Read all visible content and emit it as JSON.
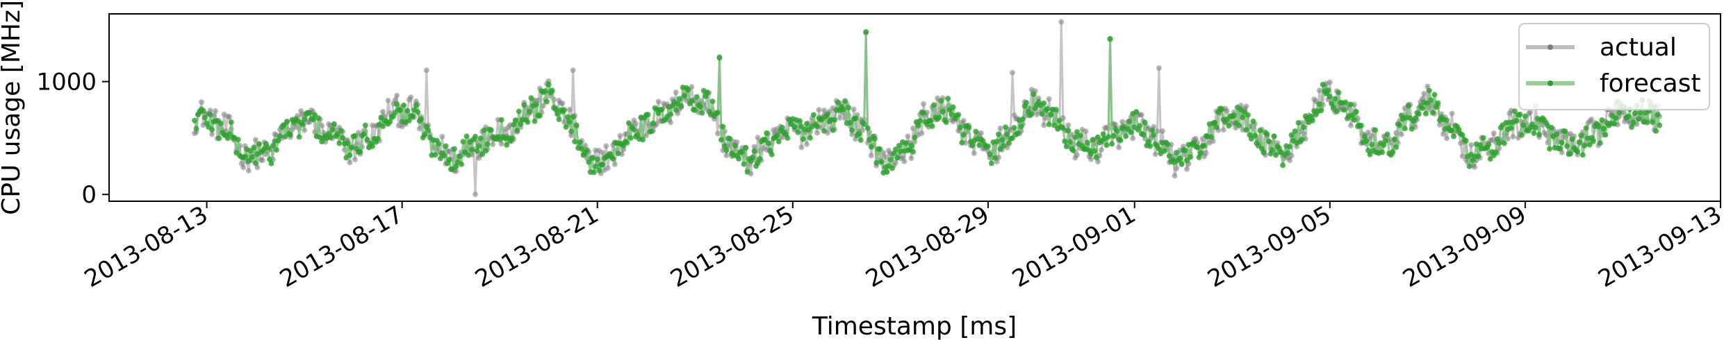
{
  "chart_data": {
    "type": "line",
    "title": "",
    "xlabel": "Timestamp [ms]",
    "ylabel": "CPU usage [MHz]",
    "x_start": "2013-08-12",
    "x_end": "2013-09-13",
    "xlim": [
      "2013-08-11",
      "2013-09-13"
    ],
    "ylim": [
      -60,
      1600
    ],
    "x_ticks": [
      "2013-08-13",
      "2013-08-17",
      "2013-08-21",
      "2013-08-25",
      "2013-08-29",
      "2013-09-01",
      "2013-09-05",
      "2013-09-09",
      "2013-09-13"
    ],
    "y_ticks": [
      "0",
      "1000"
    ],
    "y_tick_values": [
      0,
      1000
    ],
    "legend_position": "top-right",
    "grid": false,
    "series": [
      {
        "name": "actual",
        "color": "#7f7f7f",
        "marker": "circle",
        "points": [
          [
            "2013-08-13",
            680
          ],
          [
            "2013-08-14",
            330
          ],
          [
            "2013-08-15",
            650
          ],
          [
            "2013-08-16",
            420
          ],
          [
            "2013-08-17",
            760
          ],
          [
            "2013-08-18",
            330
          ],
          [
            "2013-08-19",
            560
          ],
          [
            "2013-08-20",
            860
          ],
          [
            "2013-08-21",
            280
          ],
          [
            "2013-08-22",
            640
          ],
          [
            "2013-08-23",
            880
          ],
          [
            "2013-08-24",
            320
          ],
          [
            "2013-08-25",
            560
          ],
          [
            "2013-08-26",
            720
          ],
          [
            "2013-08-27",
            300
          ],
          [
            "2013-08-28",
            760
          ],
          [
            "2013-08-29",
            380
          ],
          [
            "2013-08-30",
            780
          ],
          [
            "2013-08-31",
            420
          ],
          [
            "2013-09-01",
            600
          ],
          [
            "2013-09-02",
            300
          ],
          [
            "2013-09-03",
            700
          ],
          [
            "2013-09-04",
            360
          ],
          [
            "2013-09-05",
            880
          ],
          [
            "2013-09-06",
            420
          ],
          [
            "2013-09-07",
            800
          ],
          [
            "2013-09-08",
            360
          ],
          [
            "2013-09-09",
            650
          ],
          [
            "2013-09-10",
            420
          ],
          [
            "2013-09-11",
            720
          ]
        ],
        "peaks": [
          [
            "2013-08-17",
            1100
          ],
          [
            "2013-08-18",
            0
          ],
          [
            "2013-08-20",
            1100
          ],
          [
            "2013-08-23",
            1220
          ],
          [
            "2013-08-26",
            1430
          ],
          [
            "2013-08-29",
            1080
          ],
          [
            "2013-08-30",
            1530
          ],
          [
            "2013-08-31",
            1370
          ],
          [
            "2013-09-01",
            1120
          ]
        ]
      },
      {
        "name": "forecast",
        "color": "#2ca02c",
        "marker": "circle",
        "points": [
          [
            "2013-08-13",
            660
          ],
          [
            "2013-08-14",
            340
          ],
          [
            "2013-08-15",
            640
          ],
          [
            "2013-08-16",
            430
          ],
          [
            "2013-08-17",
            740
          ],
          [
            "2013-08-18",
            340
          ],
          [
            "2013-08-19",
            560
          ],
          [
            "2013-08-20",
            840
          ],
          [
            "2013-08-21",
            290
          ],
          [
            "2013-08-22",
            630
          ],
          [
            "2013-08-23",
            860
          ],
          [
            "2013-08-24",
            330
          ],
          [
            "2013-08-25",
            560
          ],
          [
            "2013-08-26",
            700
          ],
          [
            "2013-08-27",
            310
          ],
          [
            "2013-08-28",
            740
          ],
          [
            "2013-08-29",
            390
          ],
          [
            "2013-08-30",
            760
          ],
          [
            "2013-08-31",
            430
          ],
          [
            "2013-09-01",
            590
          ],
          [
            "2013-09-02",
            310
          ],
          [
            "2013-09-03",
            690
          ],
          [
            "2013-09-04",
            370
          ],
          [
            "2013-09-05",
            860
          ],
          [
            "2013-09-06",
            430
          ],
          [
            "2013-09-07",
            780
          ],
          [
            "2013-09-08",
            370
          ],
          [
            "2013-09-09",
            640
          ],
          [
            "2013-09-10",
            430
          ],
          [
            "2013-09-11",
            700
          ]
        ],
        "peaks": [
          [
            "2013-08-23",
            1210
          ],
          [
            "2013-08-26",
            1440
          ],
          [
            "2013-08-31",
            1380
          ]
        ]
      }
    ]
  }
}
